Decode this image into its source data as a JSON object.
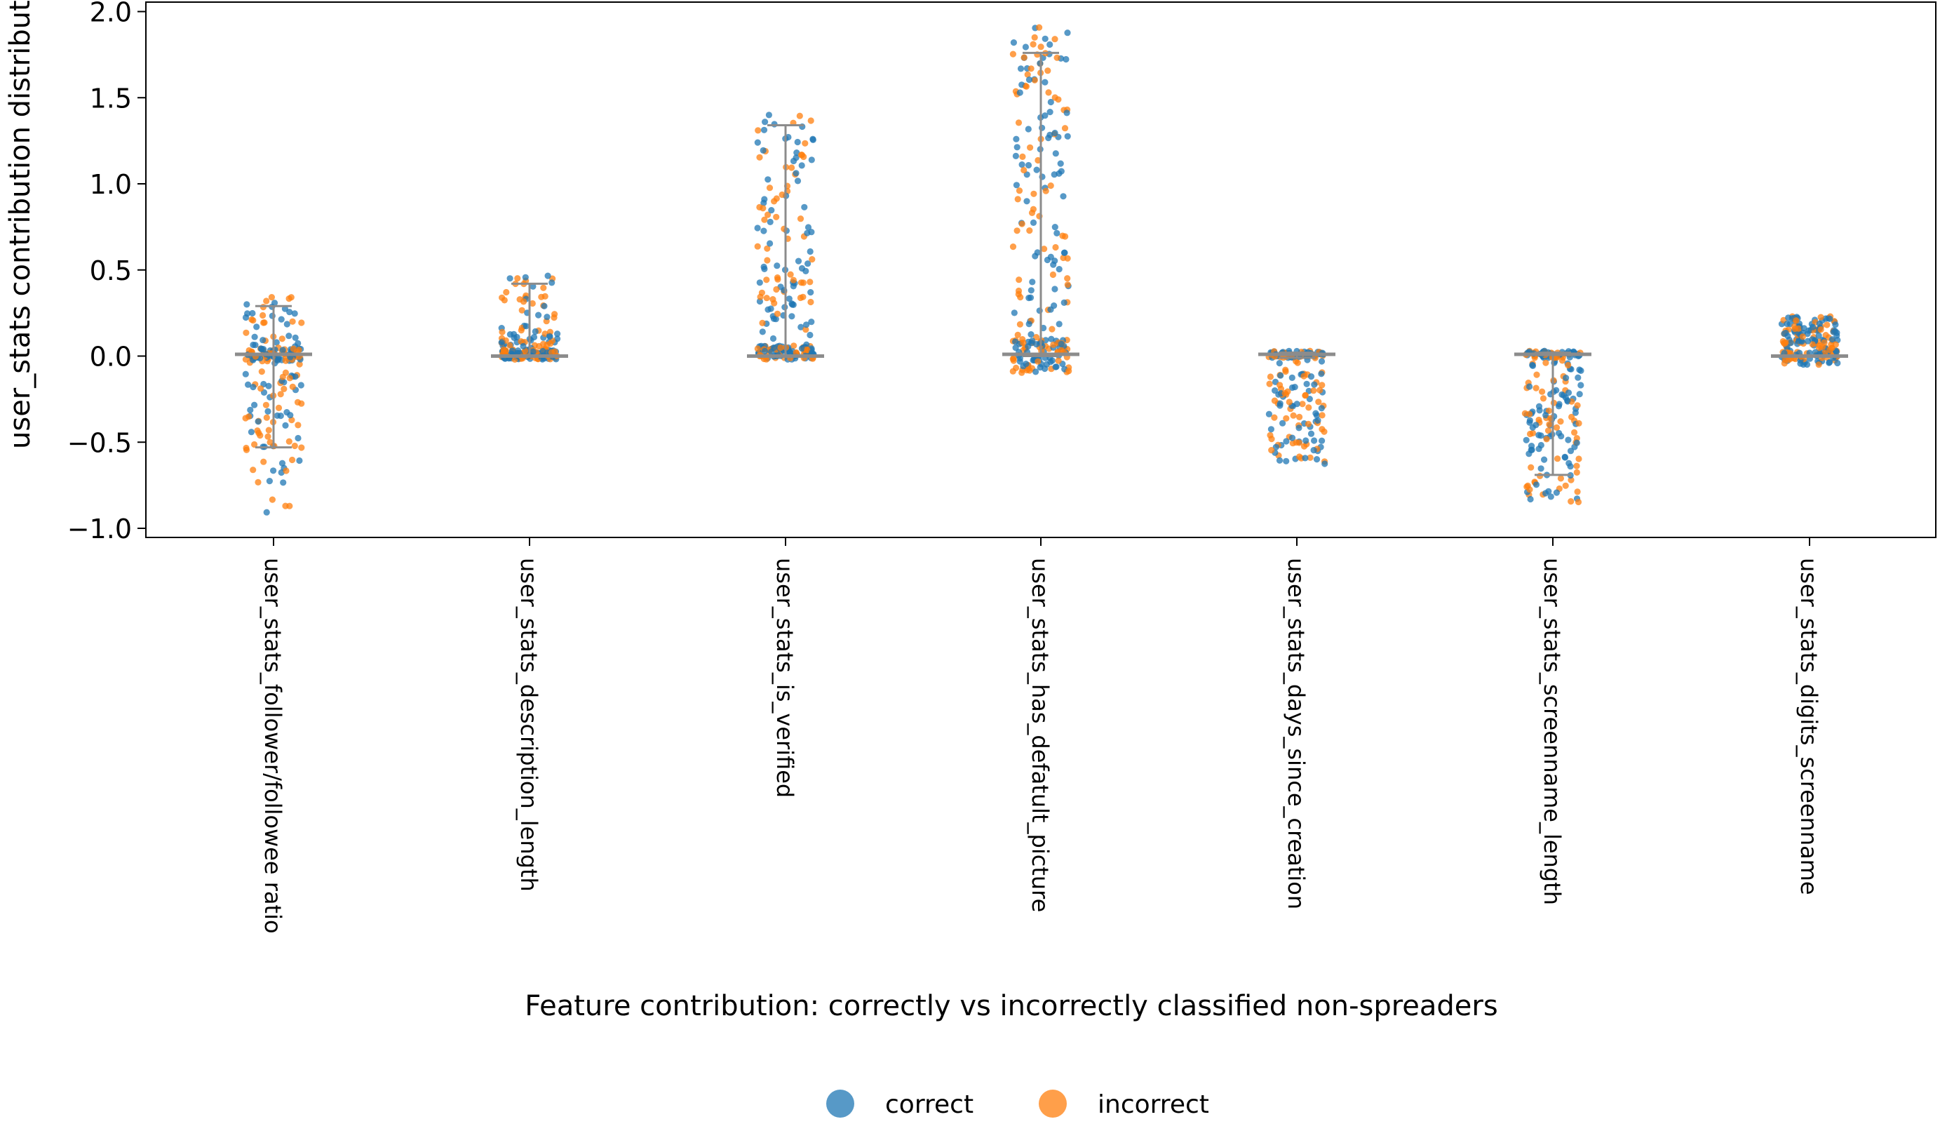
{
  "chart_data": {
    "type": "scatter",
    "subtype": "strip plot with whisker markers",
    "title": "",
    "xlabel": "Feature contribution: correctly vs incorrectly classified non-spreaders",
    "ylabel": "user_stats contribution distribution",
    "ylim": [
      -1.05,
      2.05
    ],
    "yticks": [
      -1.0,
      -0.5,
      0.0,
      0.5,
      1.0,
      1.5,
      2.0
    ],
    "ytick_labels": [
      "−1.0",
      "−0.5",
      "0.0",
      "0.5",
      "1.0",
      "1.5",
      "2.0"
    ],
    "grid": false,
    "legend_position": "bottom-center",
    "categories": [
      "user_stats_follower/followee ratio",
      "user_stats_description_length",
      "user_stats_is_verified",
      "user_stats_has_defatult_picture",
      "user_stats_days_since_creation",
      "user_stats_screenname_length",
      "user_stats_digits_screenname"
    ],
    "series": [
      {
        "name": "correct",
        "color": "#1f77b4"
      },
      {
        "name": "incorrect",
        "color": "#ff7f0e"
      }
    ],
    "distributions": [
      {
        "category": "user_stats_follower/followee ratio",
        "median": 0.01,
        "whisker_low": -0.53,
        "whisker_high": 0.29,
        "min": -0.91,
        "max": 0.37
      },
      {
        "category": "user_stats_description_length",
        "median": 0.0,
        "whisker_low": 0.0,
        "whisker_high": 0.42,
        "min": -0.03,
        "max": 0.49
      },
      {
        "category": "user_stats_is_verified",
        "median": 0.0,
        "whisker_low": 0.0,
        "whisker_high": 1.34,
        "min": -0.02,
        "max": 1.41
      },
      {
        "category": "user_stats_has_defatult_picture",
        "median": 0.01,
        "whisker_low": 0.0,
        "whisker_high": 1.76,
        "min": -0.11,
        "max": 1.92
      },
      {
        "category": "user_stats_days_since_creation",
        "median": 0.01,
        "whisker_low": -0.01,
        "whisker_high": 0.02,
        "min": -0.63,
        "max": 0.07
      },
      {
        "category": "user_stats_screenname_length",
        "median": 0.01,
        "whisker_low": -0.69,
        "whisker_high": 0.02,
        "min": -0.85,
        "max": 0.03
      },
      {
        "category": "user_stats_digits_screenname",
        "median": 0.0,
        "whisker_low": 0.0,
        "whisker_high": 0.0,
        "min": -0.06,
        "max": 0.23
      }
    ]
  }
}
